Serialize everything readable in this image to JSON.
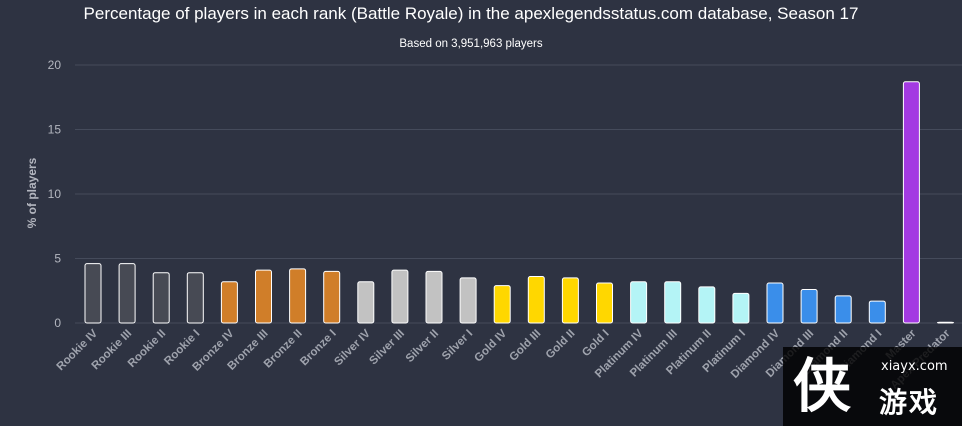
{
  "chart_data": {
    "type": "bar",
    "title": "Percentage of players in each rank (Battle Royale) in the apexlegendsstatus.com database, Season 17",
    "subtitle": "Based on 3,951,963 players",
    "ylabel": "% of players",
    "xlabel": "",
    "ylim": [
      0,
      20
    ],
    "yticks": [
      0,
      5,
      10,
      15,
      20
    ],
    "grid": true,
    "legend": "none",
    "categories": [
      "Rookie IV",
      "Rookie III",
      "Rookie II",
      "Rookie I",
      "Bronze IV",
      "Bronze III",
      "Bronze II",
      "Bronze I",
      "Silver IV",
      "Silver III",
      "Silver II",
      "Silver I",
      "Gold IV",
      "Gold III",
      "Gold II",
      "Gold I",
      "Platinum IV",
      "Platinum III",
      "Platinum II",
      "Platinum I",
      "Diamond IV",
      "Diamond III",
      "Diamond II",
      "Diamond I",
      "Master",
      "Apex Predator"
    ],
    "values": [
      4.6,
      4.6,
      3.9,
      3.9,
      3.2,
      4.1,
      4.2,
      4.0,
      3.2,
      4.1,
      4.0,
      3.5,
      2.9,
      3.6,
      3.5,
      3.1,
      3.2,
      3.2,
      2.8,
      2.3,
      3.1,
      2.6,
      2.1,
      1.7,
      18.7,
      0.05
    ],
    "colors": [
      "#474a54",
      "#474a54",
      "#474a54",
      "#474a54",
      "#d07e29",
      "#d07e29",
      "#d07e29",
      "#d07e29",
      "#c2c2c2",
      "#c2c2c2",
      "#c2c2c2",
      "#c2c2c2",
      "#ffd700",
      "#ffd700",
      "#ffd700",
      "#ffd700",
      "#b4f4f6",
      "#b4f4f6",
      "#b4f4f6",
      "#b4f4f6",
      "#3a8eea",
      "#3a8eea",
      "#3a8eea",
      "#3a8eea",
      "#a33ae2",
      "#474a54"
    ]
  },
  "watermark": {
    "logo_glyph": "侠",
    "url": "xiayx.com",
    "name": "游戏"
  }
}
